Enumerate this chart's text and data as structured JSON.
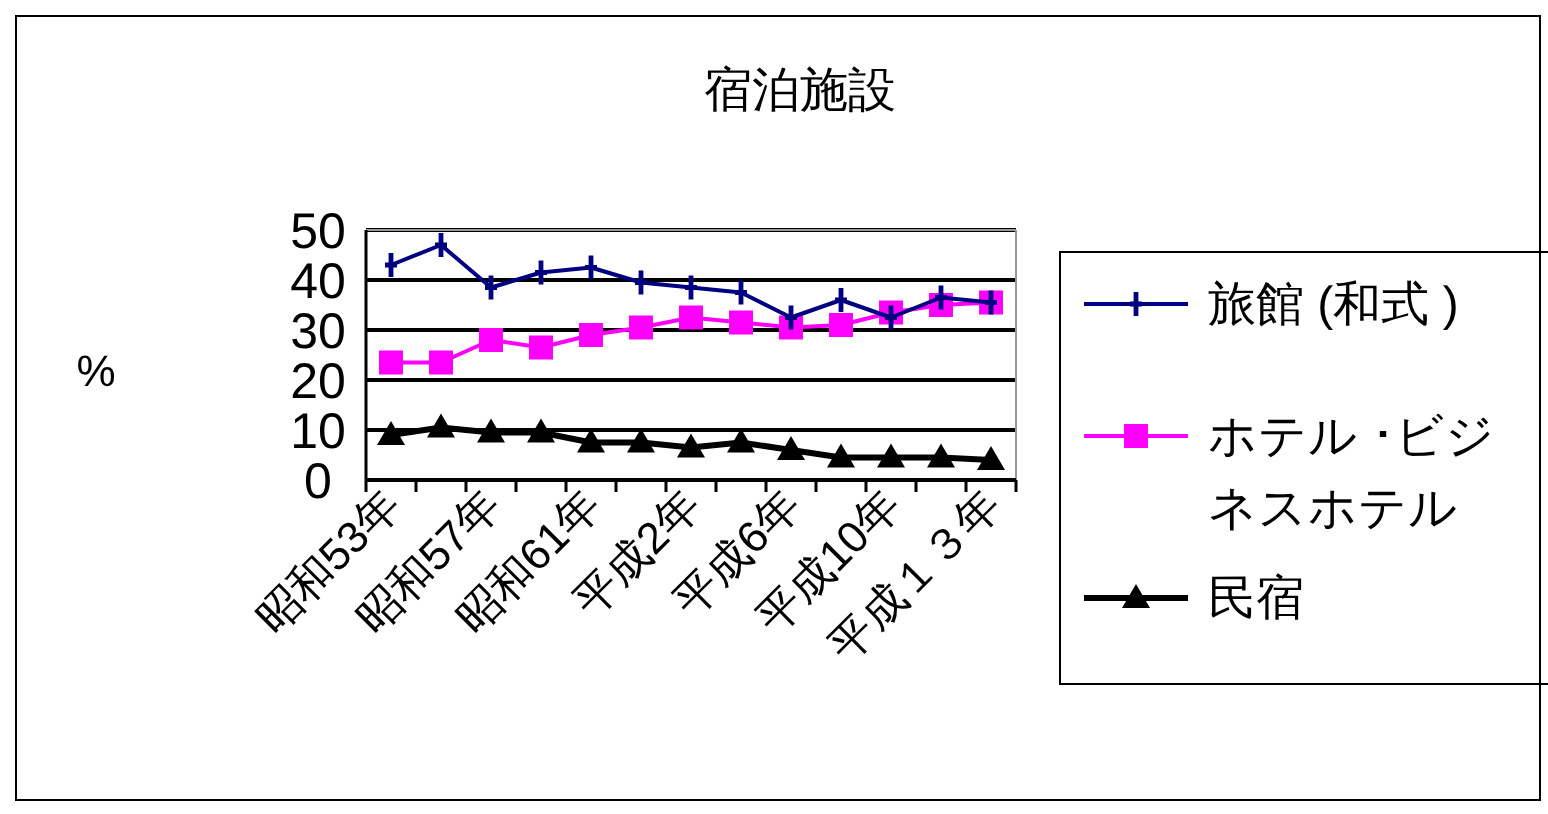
{
  "chart_data": {
    "type": "line",
    "title": "宿泊施設",
    "ylabel": "%",
    "categories": [
      "昭和53年",
      null,
      "昭和57年",
      null,
      "昭和61年",
      null,
      "平成2年",
      null,
      "平成6年",
      null,
      "平成10年",
      null,
      "平成１３年"
    ],
    "series": [
      {
        "name": "旅館 (和式 )",
        "color": "#000080",
        "marker": "cross",
        "values": [
          43,
          47,
          38.5,
          41.5,
          42.5,
          39.5,
          38.5,
          37.5,
          32.5,
          36,
          32.5,
          36.5,
          35.5
        ]
      },
      {
        "name": "ホテル ･ビジネスホテル",
        "color": "#ff00ff",
        "marker": "square",
        "values": [
          23.5,
          23.5,
          28,
          26.5,
          29,
          30.5,
          32.5,
          31.5,
          30.5,
          31,
          33.5,
          35,
          35.5
        ]
      },
      {
        "name": "民宿",
        "color": "#000000",
        "marker": "triangle",
        "values": [
          9,
          10.5,
          9.5,
          9.5,
          7.5,
          7.5,
          6.5,
          7.5,
          6,
          4.5,
          4.5,
          4.5,
          4
        ]
      }
    ],
    "ylim": [
      0,
      50
    ],
    "yticks": [
      0,
      10,
      20,
      30,
      40,
      50
    ],
    "grid": "y",
    "legend": "right"
  }
}
